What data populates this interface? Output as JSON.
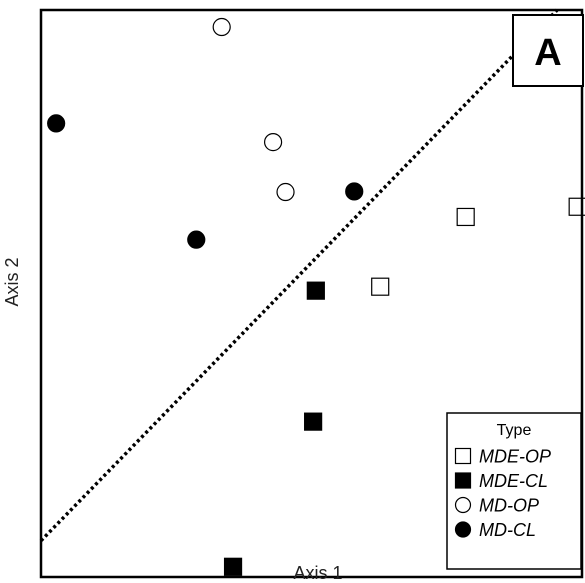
{
  "chart_data": {
    "type": "scatter",
    "panel_label": "A",
    "xlabel": "Axis 1",
    "ylabel": "Axis 2",
    "xlim": [
      0,
      100
    ],
    "ylim": [
      0,
      100
    ],
    "grid": false,
    "legend": {
      "title": "Type",
      "placement": "bottom-right"
    },
    "series": [
      {
        "name": "MDE-OP",
        "marker": "square",
        "filled": false,
        "color": "#000000",
        "points": [
          [
            78.5,
            63.5
          ],
          [
            99.2,
            65.3
          ],
          [
            62.7,
            51.2
          ]
        ]
      },
      {
        "name": "MDE-CL",
        "marker": "square",
        "filled": true,
        "color": "#000000",
        "points": [
          [
            50.8,
            50.5
          ],
          [
            50.3,
            27.4
          ],
          [
            35.5,
            1.8
          ]
        ]
      },
      {
        "name": "MD-OP",
        "marker": "circle",
        "filled": false,
        "color": "#000000",
        "points": [
          [
            33.4,
            97.0
          ],
          [
            42.9,
            76.7
          ],
          [
            45.2,
            67.9
          ]
        ]
      },
      {
        "name": "MD-CL",
        "marker": "circle",
        "filled": true,
        "color": "#000000",
        "points": [
          [
            2.8,
            80.0
          ],
          [
            57.9,
            68.0
          ],
          [
            28.7,
            59.5
          ]
        ]
      }
    ],
    "reference_line": {
      "style": "dotted",
      "x": [
        0,
        95.4
      ],
      "y": [
        6.4,
        100
      ]
    }
  }
}
